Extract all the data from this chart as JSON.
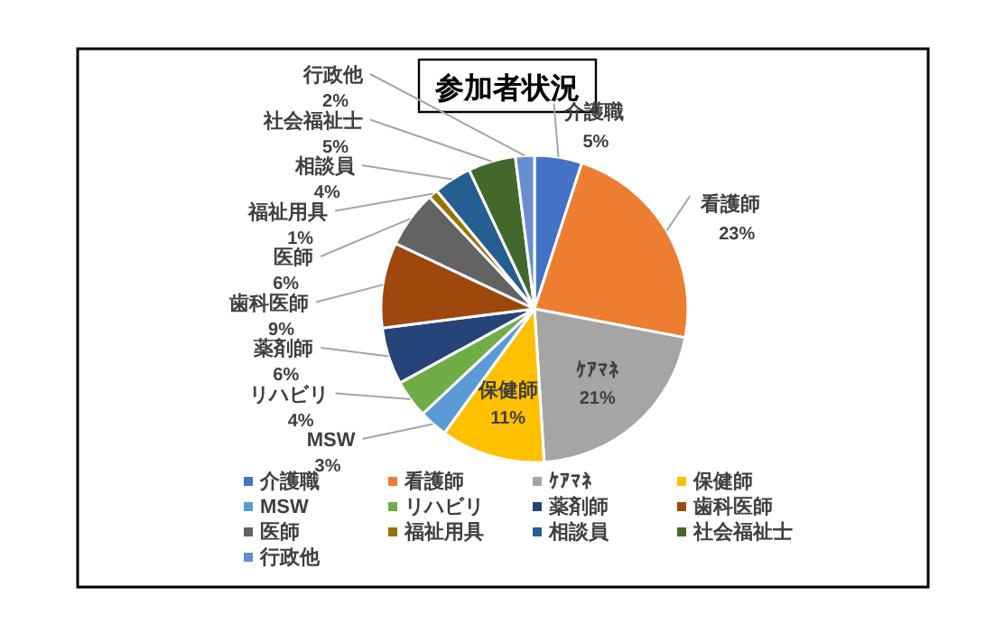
{
  "chart_data": {
    "type": "pie",
    "title": "参加者状況",
    "categories": [
      "介護職",
      "看護師",
      "ｹｱﾏﾈ",
      "保健師",
      "MSW",
      "リハビリ",
      "薬剤師",
      "歯科医師",
      "医師",
      "福祉用具",
      "相談員",
      "社会福祉士",
      "行政他"
    ],
    "values": [
      5,
      23,
      21,
      11,
      3,
      4,
      6,
      9,
      6,
      1,
      4,
      5,
      2
    ],
    "value_labels": [
      "5%",
      "23%",
      "21%",
      "11%",
      "3%",
      "4%",
      "6%",
      "9%",
      "6%",
      "1%",
      "4%",
      "5%",
      "2%"
    ],
    "colors": [
      "#4472c4",
      "#ed7d31",
      "#a5a5a5",
      "#ffc000",
      "#5b9bd5",
      "#70ad47",
      "#264478",
      "#9e480e",
      "#636363",
      "#997300",
      "#255e91",
      "#43682b",
      "#698ed0"
    ],
    "legend": "bottom"
  }
}
